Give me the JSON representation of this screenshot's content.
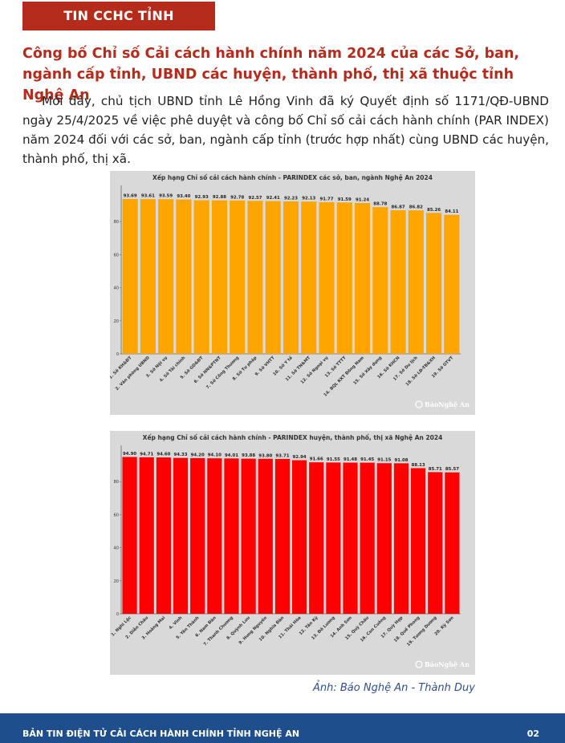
{
  "header": {
    "tag": "TIN CCHC TỈNH"
  },
  "article": {
    "headline": "Công bố Chỉ số Cải cách hành chính năm 2024 của các Sở, ban, ngành cấp tỉnh, UBND các huyện, thành phố, thị xã thuộc tỉnh Nghệ An",
    "body": "Mới đây, chủ tịch UBND tỉnh Lê Hồng Vinh đã ký Quyết định số 1171/QĐ-UBND ngày 25/4/2025 về việc phê duyệt và công bố Chỉ số cải cách hành chính (PAR INDEX) năm 2024 đối với các sở, ban, ngành cấp tỉnh (trước hợp nhất) cùng UBND các huyện, thành phố, thị xã.",
    "caption": "Ảnh: Báo Nghệ An - Thành Duy"
  },
  "footer": {
    "title": "BẢN TIN ĐIỆN TỬ CẢI CÁCH HÀNH CHÍNH TỈNH NGHỆ AN",
    "page": "02"
  },
  "chart_data": [
    {
      "type": "bar",
      "title": "Xếp hạng Chỉ số cải cách hành chính - PARINDEX các sở, ban, ngành Nghệ An 2024",
      "color": "#ffa500",
      "watermark": "BáoNghệ An",
      "ylim": [
        0,
        100
      ],
      "yticks": [
        0,
        20,
        40,
        60,
        80
      ],
      "categories": [
        "1. Sở KH&ĐT",
        "2. Văn phòng UBND",
        "3. Sở Nội vụ",
        "4. Sở Tài chính",
        "5. Sở GD&ĐT",
        "6. Sở NN&PTNT",
        "7. Sở Công Thương",
        "8. Sở Tư pháp",
        "9. Sở VHTT",
        "10. Sở Y tế",
        "11. Sở TN&MT",
        "12. Sở Ngoại vụ",
        "13. Sở TTTT",
        "14. BQL KKT Đông Nam",
        "15. Sở Xây dựng",
        "16. Sở KHCN",
        "17. Sở Du lịch",
        "18. Sở LĐ-TB&XH",
        "19. Sở GTVT"
      ],
      "values": [
        93.69,
        93.61,
        93.59,
        93.4,
        92.93,
        92.88,
        92.78,
        92.57,
        92.41,
        92.23,
        92.13,
        91.77,
        91.59,
        91.24,
        88.78,
        86.87,
        86.82,
        85.26,
        84.11
      ],
      "labels": [
        "93.69",
        "93.61",
        "93.59",
        "93.40",
        "92.93",
        "92.88",
        "92.78",
        "92.57",
        "92.41",
        "92.23",
        "92.13",
        "91.77",
        "91.59",
        "91.24",
        "88.78",
        "86.87",
        "86.82",
        "85.26",
        "84.11"
      ]
    },
    {
      "type": "bar",
      "title": "Xếp hạng Chỉ số cải cách hành chính - PARINDEX huyện, thành phố, thị xã Nghệ An 2024",
      "color": "#ff0000",
      "watermark": "BáoNghệ An",
      "ylim": [
        0,
        100
      ],
      "yticks": [
        0,
        20,
        40,
        60,
        80
      ],
      "categories": [
        "1. Nghi Lộc",
        "2. Diễn Châu",
        "3. Hoàng Mai",
        "4. Vinh",
        "5. Yên Thành",
        "6. Nam Đàn",
        "7. Thanh Chương",
        "8. Quỳnh Lưu",
        "9. Hưng Nguyên",
        "10. Nghĩa Đàn",
        "11. Thái Hòa",
        "12. Tân Kỳ",
        "13. Đô Lương",
        "14. Anh Sơn",
        "15. Quỳ Châu",
        "16. Con Cuông",
        "17. Quỳ Hợp",
        "18. Quế Phong",
        "19. Tương Dương",
        "20. Kỳ Sơn"
      ],
      "values": [
        94.9,
        94.71,
        94.6,
        94.33,
        94.2,
        94.1,
        94.01,
        93.88,
        93.8,
        93.71,
        92.94,
        91.66,
        91.55,
        91.48,
        91.45,
        91.15,
        91.08,
        88.13,
        85.71,
        85.57
      ],
      "labels": [
        "94.90",
        "94.71",
        "94.60",
        "94.33",
        "94.20",
        "94.10",
        "94.01",
        "93.88",
        "93.80",
        "93.71",
        "92.94",
        "91.66",
        "91.55",
        "91.48",
        "91.45",
        "91.15",
        "91.08",
        "88.13",
        "85.71",
        "85.57"
      ]
    }
  ]
}
